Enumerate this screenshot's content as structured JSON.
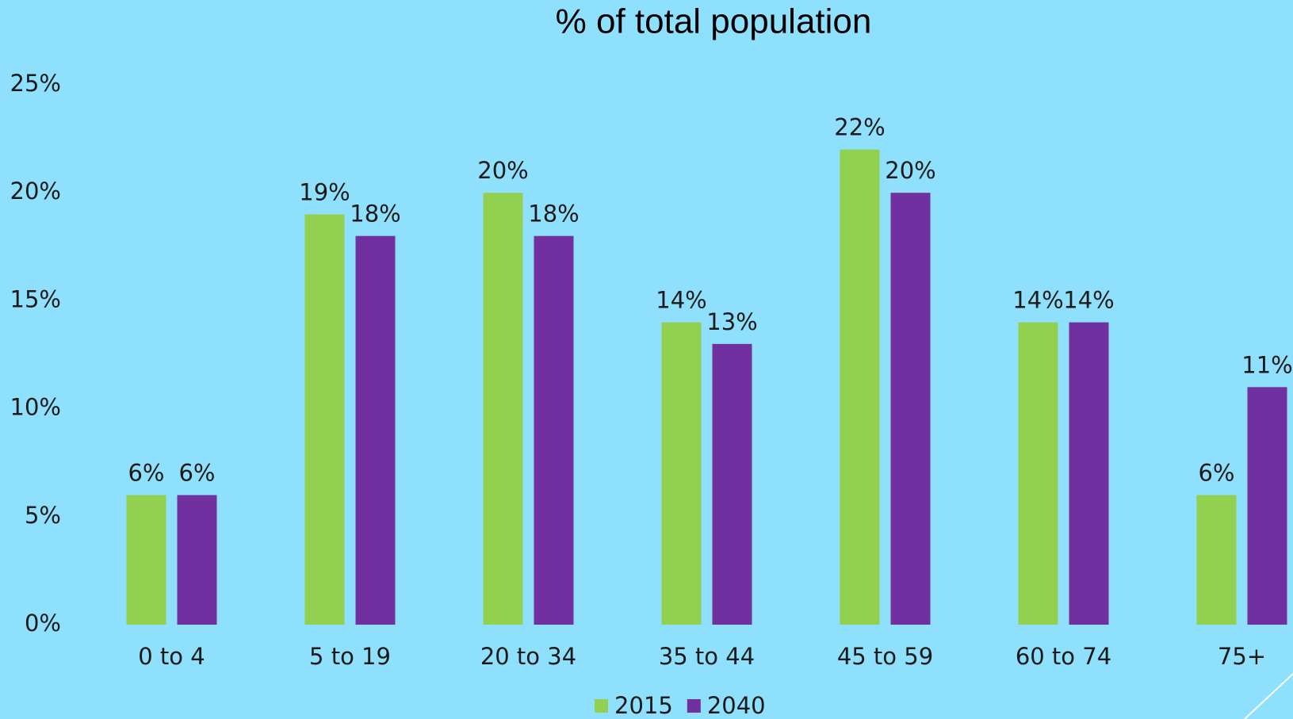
{
  "chart_data": {
    "type": "bar",
    "title": "% of total population",
    "categories": [
      "0 to 4",
      "5 to 19",
      "20 to 34",
      "35 to 44",
      "45 to 59",
      "60 to 74",
      "75+"
    ],
    "series": [
      {
        "name": "2015",
        "color": "#92d050",
        "values": [
          6,
          19,
          20,
          14,
          22,
          14,
          6
        ],
        "value_labels": [
          "6%",
          "19%",
          "20%",
          "14%",
          "22%",
          "14%",
          "6%"
        ]
      },
      {
        "name": "2040",
        "color": "#7030a0",
        "values": [
          6,
          18,
          18,
          13,
          20,
          14,
          11
        ],
        "value_labels": [
          "6%",
          "18%",
          "18%",
          "13%",
          "20%",
          "14%",
          "11%"
        ]
      }
    ],
    "ylim": [
      0,
      25
    ],
    "yticks": [
      {
        "value": 0,
        "label": "0%"
      },
      {
        "value": 5,
        "label": "5%"
      },
      {
        "value": 10,
        "label": "10%"
      },
      {
        "value": 15,
        "label": "15%"
      },
      {
        "value": 20,
        "label": "20%"
      },
      {
        "value": 25,
        "label": "25%"
      }
    ],
    "grid": false,
    "legend": "bottom"
  }
}
